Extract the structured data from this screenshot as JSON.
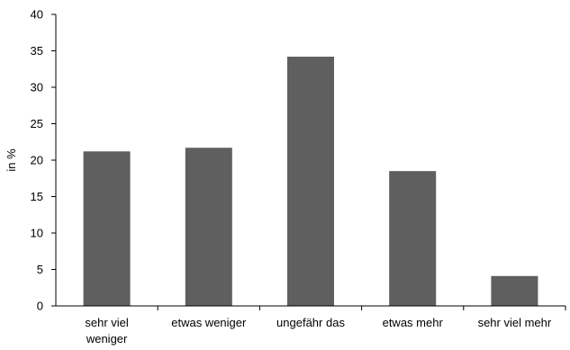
{
  "chart_data": {
    "type": "bar",
    "title": "",
    "xlabel": "",
    "ylabel": "in %",
    "categories": [
      [
        "sehr viel",
        "weniger"
      ],
      [
        "etwas weniger"
      ],
      [
        "ungefähr das"
      ],
      [
        "etwas mehr"
      ],
      [
        "sehr viel mehr"
      ]
    ],
    "values": [
      21.2,
      21.7,
      34.2,
      18.5,
      4.1
    ],
    "ylim": [
      0,
      40
    ],
    "yticks": [
      "0",
      "5",
      "10",
      "15",
      "20",
      "25",
      "30",
      "35",
      "40"
    ],
    "grid": false,
    "legend": "none",
    "colors": {
      "bar": "#5f5f5f",
      "axis": "#000000",
      "text": "#000000"
    }
  }
}
